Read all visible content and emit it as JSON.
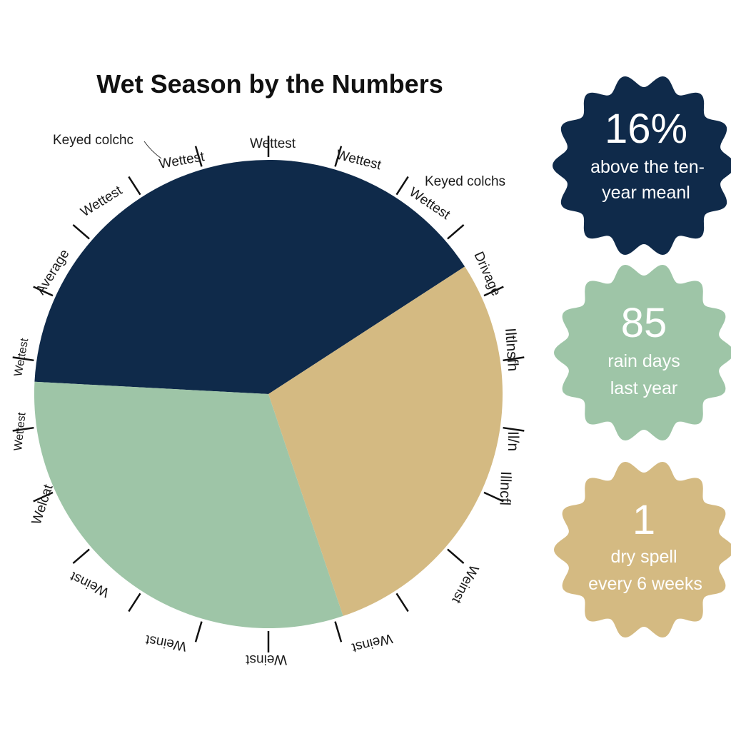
{
  "title": "Wet Season by the Numbers",
  "colors": {
    "navy": "#0f2a4a",
    "green": "#9ec5a7",
    "tan": "#d4ba82"
  },
  "chart_data": {
    "type": "pie",
    "title": "Wet Season by the Numbers",
    "slices": [
      {
        "value": 40,
        "color": "#0f2a4a"
      },
      {
        "value": 29,
        "color": "#d4ba82"
      },
      {
        "value": 31,
        "color": "#9ec5a7"
      }
    ],
    "ring_labels": [
      "Keyed colchc",
      "Wettest",
      "Wettest",
      "Wettest",
      "Keyed colchs",
      "Wettest",
      "Wettest",
      "Average",
      "Drivage",
      "Wettest",
      "Iltlnsfh",
      "Wettest",
      "Il/n",
      "Welcat",
      "Illncfl",
      "Weinst",
      "Weinst",
      "Weinst",
      "Weinst",
      "Weinst"
    ]
  },
  "stats": [
    {
      "value": "16%",
      "line1": "above the ten-",
      "line2": "year meanl",
      "color": "#0f2a4a"
    },
    {
      "value": "85",
      "line1": "rain days",
      "line2": "last year",
      "color": "#9ec5a7"
    },
    {
      "value": "1",
      "line1": "dry spell",
      "line2": "every 6 weeks",
      "color": "#d4ba82"
    }
  ]
}
